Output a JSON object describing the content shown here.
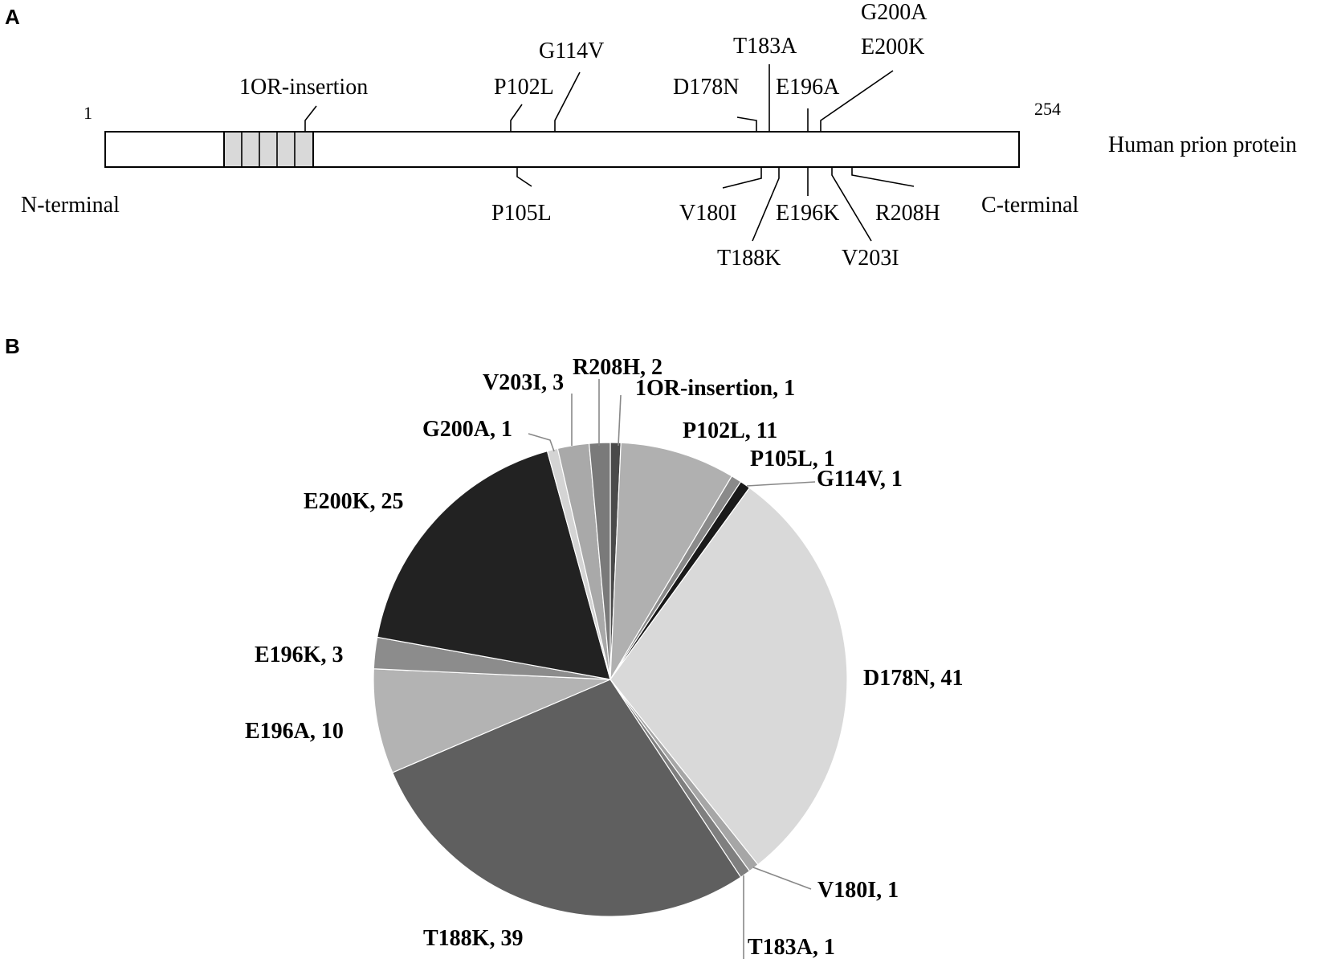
{
  "panel_a": {
    "label": "A",
    "protein_name": "Human prion protein",
    "start_position": "1",
    "end_position": "254",
    "n_terminal": "N-terminal",
    "c_terminal": "C-terminal",
    "colors": {
      "repeat_fill": "#d9d9d9",
      "bar_fill": "#ffffff",
      "outline": "#000000"
    },
    "mutations_above": [
      "1OR-insertion",
      "P102L",
      "G114V",
      "D178N",
      "T183A",
      "E196A",
      "G200A",
      "E200K"
    ],
    "mutations_below": [
      "P105L",
      "V180I",
      "T188K",
      "E196K",
      "V203I",
      "R208H"
    ]
  },
  "panel_b": {
    "label": "B"
  },
  "chart_data": {
    "type": "pie",
    "title": "",
    "slices": [
      {
        "label": "1OR-insertion",
        "value": 1,
        "color": "#4a4a4a",
        "display": "1OR-insertion, 1"
      },
      {
        "label": "P102L",
        "value": 11,
        "color": "#b0b0b0",
        "display": "P102L, 11"
      },
      {
        "label": "P105L",
        "value": 1,
        "color": "#8a8a8a",
        "display": "P105L, 1"
      },
      {
        "label": "G114V",
        "value": 1,
        "color": "#1a1a1a",
        "display": "G114V, 1"
      },
      {
        "label": "D178N",
        "value": 41,
        "color": "#d9d9d9",
        "display": "D178N, 41"
      },
      {
        "label": "V180I",
        "value": 1,
        "color": "#a6a6a6",
        "display": "V180I, 1"
      },
      {
        "label": "T183A",
        "value": 1,
        "color": "#7f7f7f",
        "display": "T183A, 1"
      },
      {
        "label": "T188K",
        "value": 39,
        "color": "#5f5f5f",
        "display": "T188K, 39"
      },
      {
        "label": "E196A",
        "value": 10,
        "color": "#b3b3b3",
        "display": "E196A, 10"
      },
      {
        "label": "E196K",
        "value": 3,
        "color": "#8c8c8c",
        "display": "E196K, 3"
      },
      {
        "label": "E200K",
        "value": 25,
        "color": "#222222",
        "display": "E200K, 25"
      },
      {
        "label": "G200A",
        "value": 1,
        "color": "#d4d4d4",
        "display": "G200A, 1"
      },
      {
        "label": "V203I",
        "value": 3,
        "color": "#a9a9a9",
        "display": "V203I, 3"
      },
      {
        "label": "R208H",
        "value": 2,
        "color": "#7a7a7a",
        "display": "R208H, 2"
      }
    ]
  }
}
